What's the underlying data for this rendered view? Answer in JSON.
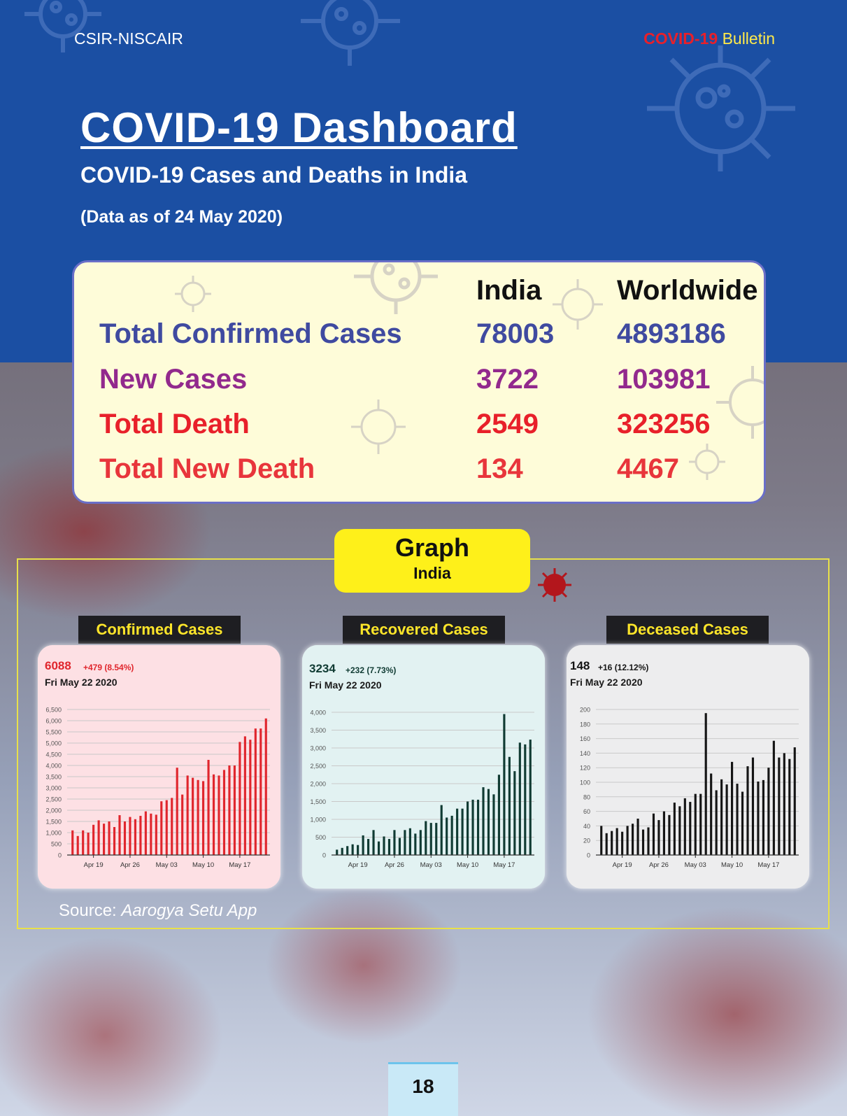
{
  "header": {
    "org": "CSIR-NISCAIR",
    "bulletin_red": "COVID-19",
    "bulletin_yellow": "Bulletin"
  },
  "title": "COVID-19 Dashboard",
  "subtitle": "COVID-19 Cases and Deaths in India",
  "as_of": "(Data as of 24 May 2020)",
  "stats": {
    "columns": [
      "India",
      "Worldwide"
    ],
    "rows": [
      {
        "label": "Total Confirmed Cases",
        "india": "78003",
        "world": "4893186",
        "color": "#3f4aa0"
      },
      {
        "label": "New Cases",
        "india": "3722",
        "world": "103981",
        "color": "#92298d"
      },
      {
        "label": "Total Death",
        "india": "2549",
        "world": "323256",
        "color": "#e8202a"
      },
      {
        "label": "Total New Death",
        "india": "134",
        "world": "4467",
        "color": "#e8353b"
      }
    ]
  },
  "graph_tag": {
    "title": "Graph",
    "sub": "India"
  },
  "source": {
    "prefix": "Source: ",
    "name": "Aarogya Setu App"
  },
  "page_number": "18",
  "chart_data": [
    {
      "type": "bar",
      "title": "Confirmed Cases",
      "value": "6088",
      "delta": "+479 (8.54%)",
      "date": "Fri May 22 2020",
      "color": "#e0262d",
      "bg": "#fde0e4",
      "ylim": [
        0,
        6500
      ],
      "yticks": [
        0,
        500,
        1000,
        1500,
        2000,
        2500,
        3000,
        3500,
        4000,
        4500,
        5000,
        5500,
        6000,
        6500
      ],
      "ytick_labels": [
        "0",
        "500",
        "1,000",
        "1,500",
        "2,000",
        "2,500",
        "3,000",
        "3,500",
        "4,000",
        "4,500",
        "5,000",
        "5,500",
        "6,000",
        "6,500"
      ],
      "xtick_labels": [
        "Apr 19",
        "Apr 26",
        "May 03",
        "May 10",
        "May 17"
      ],
      "xtick_index": [
        4,
        11,
        18,
        25,
        32
      ],
      "values": [
        1100,
        850,
        1100,
        1000,
        1350,
        1550,
        1400,
        1500,
        1250,
        1780,
        1500,
        1700,
        1600,
        1750,
        1950,
        1850,
        1800,
        2400,
        2450,
        2550,
        3900,
        2700,
        3550,
        3450,
        3350,
        3300,
        4250,
        3600,
        3550,
        3800,
        4000,
        4000,
        5050,
        5300,
        5150,
        5650,
        5650,
        6100
      ]
    },
    {
      "type": "bar",
      "title": "Recovered Cases",
      "value": "3234",
      "delta": "+232 (7.73%)",
      "date": "Fri May 22 2020",
      "color": "#103b33",
      "bg": "#e2f2f2",
      "ylim": [
        0,
        4000
      ],
      "yticks": [
        0,
        500,
        1000,
        1500,
        2000,
        2500,
        3000,
        3500,
        4000
      ],
      "ytick_labels": [
        "0",
        "500",
        "1,000",
        "1,500",
        "2,000",
        "2,500",
        "3,000",
        "3,500",
        "4,000"
      ],
      "xtick_labels": [
        "Apr 19",
        "Apr 26",
        "May 03",
        "May 10",
        "May 17"
      ],
      "xtick_index": [
        4,
        11,
        18,
        25,
        32
      ],
      "values": [
        150,
        200,
        250,
        300,
        280,
        550,
        450,
        700,
        380,
        520,
        450,
        700,
        480,
        700,
        750,
        600,
        700,
        950,
        900,
        900,
        1400,
        1050,
        1100,
        1300,
        1300,
        1500,
        1550,
        1550,
        1900,
        1850,
        1700,
        2250,
        3950,
        2750,
        2350,
        3150,
        3100,
        3234
      ]
    },
    {
      "type": "bar",
      "title": "Deceased Cases",
      "value": "148",
      "delta": "+16 (12.12%)",
      "date": "Fri May 22 2020",
      "color": "#151515",
      "bg": "#ededee",
      "ylim": [
        0,
        200
      ],
      "yticks": [
        0,
        20,
        40,
        60,
        80,
        100,
        120,
        140,
        160,
        180,
        200
      ],
      "ytick_labels": [
        "0",
        "20",
        "40",
        "60",
        "80",
        "100",
        "120",
        "140",
        "160",
        "180",
        "200"
      ],
      "xtick_labels": [
        "Apr 19",
        "Apr 26",
        "May 03",
        "May 10",
        "May 17"
      ],
      "xtick_index": [
        4,
        11,
        18,
        25,
        32
      ],
      "values": [
        40,
        30,
        33,
        37,
        32,
        40,
        43,
        50,
        35,
        38,
        57,
        48,
        60,
        55,
        72,
        67,
        78,
        73,
        84,
        84,
        195,
        112,
        89,
        104,
        97,
        128,
        98,
        87,
        122,
        134,
        101,
        103,
        120,
        157,
        134,
        140,
        132,
        148
      ]
    }
  ]
}
